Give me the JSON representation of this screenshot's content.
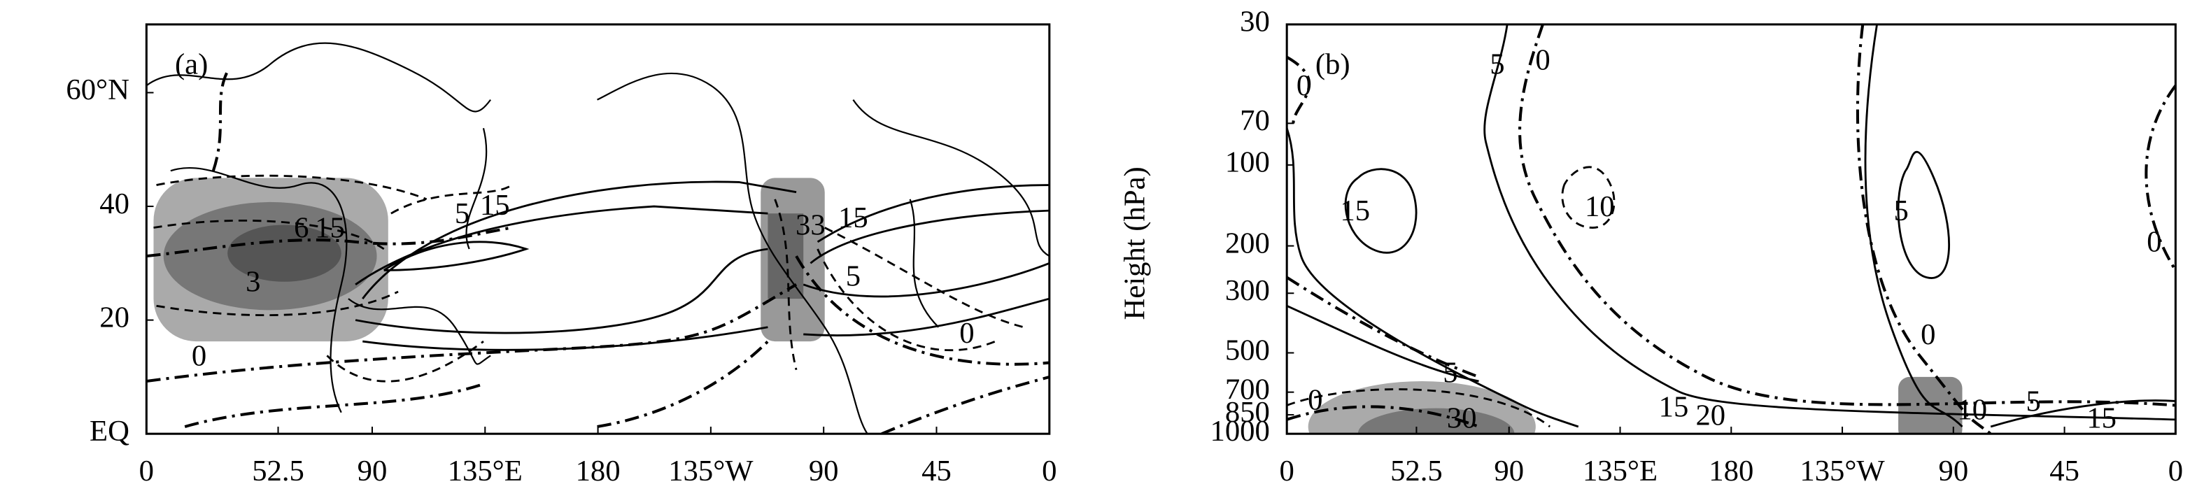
{
  "chart_data": [
    {
      "type": "contour",
      "panel_label": "(a)",
      "xlim": [
        0,
        360
      ],
      "xticks": [
        0,
        52.5,
        90,
        {
          "value": 135,
          "label": "135°E"
        },
        180,
        {
          "value": 225,
          "label": "135°W"
        },
        {
          "value": 270,
          "label": "90"
        },
        {
          "value": 315,
          "label": "45"
        },
        {
          "value": 360,
          "label": "0"
        }
      ],
      "ylim": [
        0,
        72
      ],
      "yticks": [
        {
          "value": 0,
          "label": "EQ"
        },
        20,
        40,
        {
          "value": 60,
          "label": "60°N"
        }
      ],
      "contour_labels": [
        "0",
        "6",
        "15",
        "3",
        "5",
        "15",
        "33",
        "15",
        "5",
        "0"
      ]
    },
    {
      "type": "contour",
      "panel_label": "(b)",
      "ylabel": "Height (hPa)",
      "log_y": true,
      "xlim": [
        0,
        360
      ],
      "xticks": [
        0,
        52.5,
        90,
        {
          "value": 135,
          "label": "135°E"
        },
        180,
        {
          "value": 225,
          "label": "135°W"
        },
        {
          "value": 270,
          "label": "90"
        },
        {
          "value": 315,
          "label": "45"
        },
        {
          "value": 360,
          "label": "0"
        }
      ],
      "ylim": [
        1000,
        30
      ],
      "yticks": [
        30,
        70,
        100,
        200,
        300,
        500,
        700,
        850,
        1000
      ],
      "contour_labels": [
        "0",
        "5",
        "0",
        "15",
        "10",
        "5",
        "0",
        "0",
        "5",
        "0",
        "30",
        "15",
        "20",
        "10",
        "5",
        "15"
      ]
    }
  ]
}
